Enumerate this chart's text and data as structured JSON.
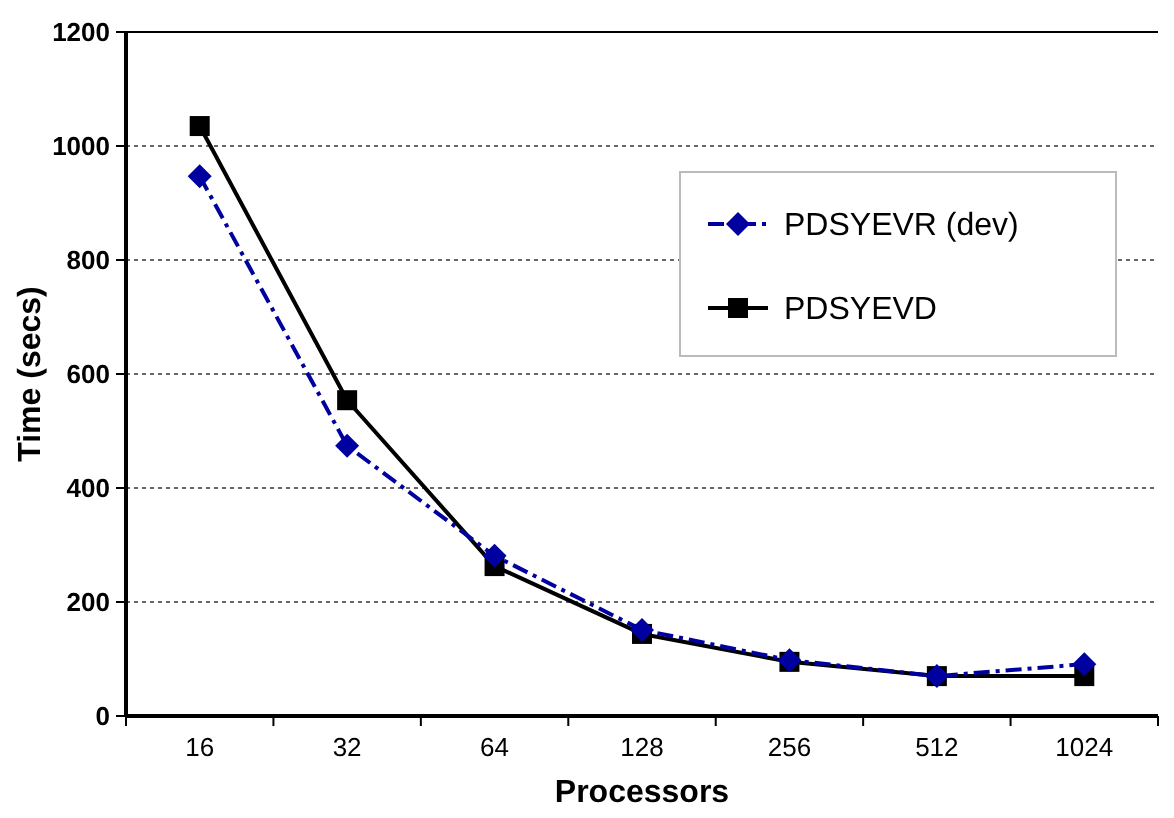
{
  "chart_data": {
    "type": "line",
    "xlabel": "Processors",
    "ylabel": "Time (secs)",
    "categories": [
      "16",
      "32",
      "64",
      "128",
      "256",
      "512",
      "1024"
    ],
    "series": [
      {
        "name": "PDSYEVR (dev)",
        "color": "#0000a0",
        "values": [
          947,
          474,
          281,
          151,
          98,
          70,
          91
        ],
        "marker": "diamond",
        "line_style": "dashed"
      },
      {
        "name": "PDSYEVD",
        "color": "#000000",
        "values": [
          1035,
          554,
          263,
          144,
          95,
          70,
          70
        ],
        "marker": "square",
        "line_style": "solid"
      }
    ],
    "ylim": [
      0,
      1200
    ],
    "yticks": [
      0,
      200,
      400,
      600,
      800,
      1000,
      1200
    ],
    "grid": "y",
    "legend": "right"
  }
}
